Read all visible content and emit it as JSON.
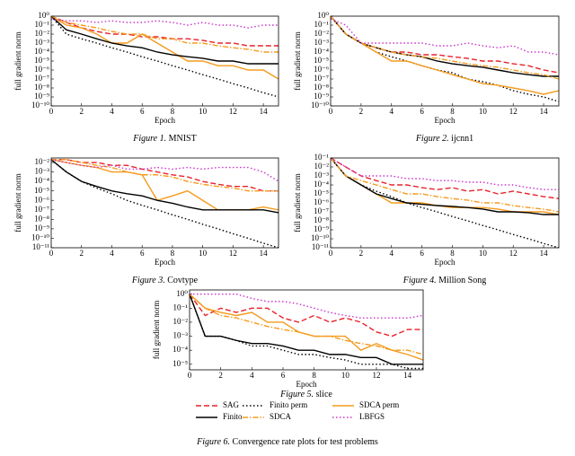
{
  "chart_data": [
    {
      "type": "line",
      "figure_label": "Figure 1.",
      "title": "MNIST",
      "xlabel": "Epoch",
      "ylabel": "full gradient norm",
      "log_y": true,
      "grid": false,
      "x": [
        0,
        1,
        2,
        3,
        4,
        5,
        6,
        7,
        8,
        9,
        10,
        11,
        12,
        13,
        14,
        15
      ],
      "xlim": [
        0,
        15
      ],
      "xticks": [
        0,
        2,
        4,
        6,
        8,
        10,
        12,
        14
      ],
      "ylim": [
        1e-10,
        1
      ],
      "yticks": [
        {
          "value": 1,
          "label": "10⁰"
        },
        {
          "value": 0.1,
          "label": "10⁻¹"
        },
        {
          "value": 0.01,
          "label": "10⁻²"
        },
        {
          "value": 0.001,
          "label": "10⁻³"
        },
        {
          "value": 0.0001,
          "label": "10⁻⁴"
        },
        {
          "value": 1e-05,
          "label": "10⁻⁵"
        },
        {
          "value": 1e-06,
          "label": "10⁻⁶"
        },
        {
          "value": 1e-07,
          "label": "10⁻⁷"
        },
        {
          "value": 1e-08,
          "label": "10⁻⁸"
        },
        {
          "value": 1e-09,
          "label": "10⁻⁹"
        },
        {
          "value": 1e-10,
          "label": "10⁻¹⁰"
        }
      ],
      "series": [
        {
          "color": "#e8222a",
          "linestyle": "dashed",
          "values": [
            1,
            0.2,
            0.05,
            0.02,
            0.01,
            0.01,
            0.005,
            0.005,
            0.003,
            0.003,
            0.002,
            0.001,
            0.001,
            0.0005,
            0.0005,
            0.0005
          ]
        },
        {
          "color": "#000000",
          "linestyle": "dotted",
          "values": [
            1,
            0.01,
            0.003,
            0.001,
            0.0003,
            0.0001,
            3e-05,
            1e-05,
            3e-06,
            1e-06,
            3e-07,
            1e-07,
            3e-08,
            1e-08,
            3e-09,
            1e-09
          ]
        },
        {
          "color": "#f59b1e",
          "linestyle": "solid",
          "values": [
            1,
            0.1,
            0.05,
            0.01,
            0.001,
            0.001,
            0.01,
            0.001,
            0.0001,
            1e-05,
            1e-05,
            3e-06,
            3e-06,
            1e-06,
            1e-06,
            1e-07
          ]
        },
        {
          "color": "#000000",
          "linestyle": "solid",
          "values": [
            1,
            0.03,
            0.01,
            0.003,
            0.001,
            0.0005,
            0.0003,
            0.0001,
            5e-05,
            3e-05,
            2e-05,
            1e-05,
            1e-05,
            5e-06,
            5e-06,
            5e-06
          ]
        },
        {
          "color": "#f59b1e",
          "linestyle": "dashdot",
          "values": [
            1,
            0.2,
            0.1,
            0.05,
            0.02,
            0.01,
            0.01,
            0.003,
            0.003,
            0.001,
            0.001,
            0.0005,
            0.0003,
            0.0002,
            0.0001,
            0.0001
          ]
        },
        {
          "color": "#cc33cc",
          "linestyle": "dotted",
          "values": [
            0.5,
            0.3,
            0.3,
            0.2,
            0.3,
            0.2,
            0.2,
            0.3,
            0.2,
            0.1,
            0.2,
            0.1,
            0.1,
            0.05,
            0.1,
            0.1
          ]
        }
      ]
    },
    {
      "type": "line",
      "figure_label": "Figure 2.",
      "title": "ijcnn1",
      "xlabel": "Epoch",
      "ylabel": "full gradient norm",
      "log_y": true,
      "grid": false,
      "x": [
        0,
        1,
        2,
        3,
        4,
        5,
        6,
        7,
        8,
        9,
        10,
        11,
        12,
        13,
        14,
        15
      ],
      "xlim": [
        0,
        15
      ],
      "xticks": [
        0,
        2,
        4,
        6,
        8,
        10,
        12,
        14
      ],
      "ylim": [
        1e-10,
        1
      ],
      "yticks": [
        {
          "value": 1,
          "label": "10⁰"
        },
        {
          "value": 0.1,
          "label": "10⁻¹"
        },
        {
          "value": 0.01,
          "label": "10⁻²"
        },
        {
          "value": 0.001,
          "label": "10⁻³"
        },
        {
          "value": 0.0001,
          "label": "10⁻⁴"
        },
        {
          "value": 1e-05,
          "label": "10⁻⁵"
        },
        {
          "value": 1e-06,
          "label": "10⁻⁶"
        },
        {
          "value": 1e-07,
          "label": "10⁻⁷"
        },
        {
          "value": 1e-08,
          "label": "10⁻⁸"
        },
        {
          "value": 1e-09,
          "label": "10⁻⁹"
        },
        {
          "value": 1e-10,
          "label": "10⁻¹⁰"
        }
      ],
      "series": [
        {
          "color": "#e8222a",
          "linestyle": "dashed",
          "values": [
            1,
            0.01,
            0.001,
            0.0003,
            0.0001,
            0.0001,
            5e-05,
            5e-05,
            3e-05,
            2e-05,
            1e-05,
            1e-05,
            5e-06,
            3e-06,
            1e-06,
            5e-07
          ]
        },
        {
          "color": "#000000",
          "linestyle": "dotted",
          "values": [
            1,
            0.01,
            0.001,
            0.0001,
            3e-05,
            1e-05,
            3e-06,
            1e-06,
            5e-07,
            1e-07,
            5e-08,
            2e-08,
            5e-09,
            2e-09,
            1e-09,
            3e-10
          ]
        },
        {
          "color": "#f59b1e",
          "linestyle": "solid",
          "values": [
            1,
            0.01,
            0.001,
            0.0001,
            1e-05,
            1e-05,
            3e-06,
            1e-06,
            3e-07,
            1e-07,
            3e-08,
            2e-08,
            1e-08,
            5e-09,
            2e-09,
            5e-09
          ]
        },
        {
          "color": "#000000",
          "linestyle": "solid",
          "values": [
            1,
            0.01,
            0.001,
            0.0003,
            0.0001,
            5e-05,
            3e-05,
            1e-05,
            5e-06,
            3e-06,
            2e-06,
            1e-06,
            5e-07,
            3e-07,
            2e-07,
            2e-07
          ]
        },
        {
          "color": "#f59b1e",
          "linestyle": "dashdot",
          "values": [
            1,
            0.01,
            0.001,
            0.0003,
            0.0001,
            5e-05,
            3e-05,
            2e-05,
            1e-05,
            5e-06,
            3e-06,
            2e-06,
            1e-06,
            5e-07,
            3e-07,
            1e-07
          ]
        },
        {
          "color": "#cc33cc",
          "linestyle": "dotted",
          "values": [
            0.5,
            0.1,
            0.001,
            0.001,
            0.001,
            0.001,
            0.001,
            0.0005,
            0.0005,
            0.001,
            0.0005,
            0.0003,
            0.0005,
            0.0001,
            0.0001,
            5e-05
          ]
        }
      ]
    },
    {
      "type": "line",
      "figure_label": "Figure 3.",
      "title": "Covtype",
      "xlabel": "Epoch",
      "ylabel": "full gradient norm",
      "log_y": true,
      "grid": false,
      "x": [
        0,
        1,
        2,
        3,
        4,
        5,
        6,
        7,
        8,
        9,
        10,
        11,
        12,
        13,
        14,
        15
      ],
      "xlim": [
        0,
        15
      ],
      "xticks": [
        0,
        2,
        4,
        6,
        8,
        10,
        12,
        14
      ],
      "ylim": [
        1e-11,
        0.03
      ],
      "yticks": [
        {
          "value": 0.01,
          "label": "10⁻²"
        },
        {
          "value": 0.001,
          "label": "10⁻³"
        },
        {
          "value": 0.0001,
          "label": "10⁻⁴"
        },
        {
          "value": 1e-05,
          "label": "10⁻⁵"
        },
        {
          "value": 1e-06,
          "label": "10⁻⁶"
        },
        {
          "value": 1e-07,
          "label": "10⁻⁷"
        },
        {
          "value": 1e-08,
          "label": "10⁻⁸"
        },
        {
          "value": 1e-09,
          "label": "10⁻⁹"
        },
        {
          "value": 1e-10,
          "label": "10⁻¹⁰"
        },
        {
          "value": 1e-11,
          "label": "10⁻¹¹"
        }
      ],
      "series": [
        {
          "color": "#e8222a",
          "linestyle": "dashed",
          "values": [
            0.02,
            0.02,
            0.01,
            0.01,
            0.005,
            0.005,
            0.002,
            0.001,
            0.0005,
            0.0003,
            0.0001,
            5e-05,
            3e-05,
            3e-05,
            1e-05,
            1e-05
          ]
        },
        {
          "color": "#000000",
          "linestyle": "dotted",
          "values": [
            0.02,
            0.001,
            0.0001,
            2e-05,
            5e-06,
            1e-06,
            3e-07,
            1e-07,
            3e-08,
            1e-08,
            3e-09,
            1e-09,
            3e-10,
            1e-10,
            3e-11,
            1e-11
          ]
        },
        {
          "color": "#f59b1e",
          "linestyle": "solid",
          "values": [
            0.02,
            0.01,
            0.005,
            0.003,
            0.001,
            0.001,
            0.0005,
            1e-06,
            3e-06,
            1e-05,
            1e-06,
            1e-07,
            1e-07,
            1e-07,
            2e-07,
            1e-07
          ]
        },
        {
          "color": "#000000",
          "linestyle": "solid",
          "values": [
            0.02,
            0.001,
            0.0001,
            3e-05,
            1e-05,
            5e-06,
            3e-06,
            1e-06,
            5e-07,
            2e-07,
            1e-07,
            1e-07,
            1e-07,
            1e-07,
            1e-07,
            5e-08
          ]
        },
        {
          "color": "#f59b1e",
          "linestyle": "dashdot",
          "values": [
            0.02,
            0.02,
            0.01,
            0.005,
            0.003,
            0.001,
            0.0005,
            0.0005,
            0.0003,
            0.0001,
            5e-05,
            3e-05,
            2e-05,
            1e-05,
            1e-05,
            1e-05
          ]
        },
        {
          "color": "#cc33cc",
          "linestyle": "dotted",
          "values": [
            0.02,
            0.01,
            0.005,
            0.003,
            0.005,
            0.002,
            0.002,
            0.003,
            0.002,
            0.003,
            0.002,
            0.003,
            0.003,
            0.003,
            0.001,
            0.0001
          ]
        }
      ]
    },
    {
      "type": "line",
      "figure_label": "Figure 4.",
      "title": "Million Song",
      "xlabel": "Epoch",
      "ylabel": "full gradient norm",
      "log_y": true,
      "grid": false,
      "x": [
        0,
        1,
        2,
        3,
        4,
        5,
        6,
        7,
        8,
        9,
        10,
        11,
        12,
        13,
        14,
        15
      ],
      "xlim": [
        0,
        15
      ],
      "xticks": [
        0,
        2,
        4,
        6,
        8,
        10,
        12,
        14
      ],
      "ylim": [
        1e-11,
        0.1
      ],
      "yticks": [
        {
          "value": 0.1,
          "label": "10⁻¹"
        },
        {
          "value": 0.01,
          "label": "10⁻²"
        },
        {
          "value": 0.001,
          "label": "10⁻³"
        },
        {
          "value": 0.0001,
          "label": "10⁻⁴"
        },
        {
          "value": 1e-05,
          "label": "10⁻⁵"
        },
        {
          "value": 1e-06,
          "label": "10⁻⁶"
        },
        {
          "value": 1e-07,
          "label": "10⁻⁷"
        },
        {
          "value": 1e-08,
          "label": "10⁻⁸"
        },
        {
          "value": 1e-09,
          "label": "10⁻⁹"
        },
        {
          "value": 1e-10,
          "label": "10⁻¹⁰"
        },
        {
          "value": 1e-11,
          "label": "10⁻¹¹"
        }
      ],
      "series": [
        {
          "color": "#e8222a",
          "linestyle": "dashed",
          "values": [
            0.1,
            0.01,
            0.001,
            0.0003,
            0.0001,
            0.0001,
            5e-05,
            3e-05,
            5e-05,
            2e-05,
            3e-05,
            1e-05,
            2e-05,
            1e-05,
            5e-06,
            3e-06
          ]
        },
        {
          "color": "#000000",
          "linestyle": "dotted",
          "values": [
            0.1,
            0.001,
            0.0001,
            2e-05,
            5e-06,
            1e-06,
            3e-07,
            1e-07,
            3e-08,
            1e-08,
            3e-09,
            1e-09,
            3e-10,
            1e-10,
            3e-11,
            1e-11
          ]
        },
        {
          "color": "#f59b1e",
          "linestyle": "solid",
          "values": [
            0.1,
            0.001,
            0.0001,
            1e-05,
            1e-06,
            1e-06,
            1e-06,
            5e-07,
            3e-07,
            3e-07,
            3e-07,
            2e-07,
            1e-07,
            1e-07,
            1e-07,
            5e-08
          ]
        },
        {
          "color": "#000000",
          "linestyle": "solid",
          "values": [
            0.1,
            0.001,
            0.0001,
            1e-05,
            3e-06,
            1e-06,
            7e-07,
            5e-07,
            4e-07,
            3e-07,
            2e-07,
            1e-07,
            1e-07,
            8e-08,
            5e-08,
            5e-08
          ]
        },
        {
          "color": "#f59b1e",
          "linestyle": "dashdot",
          "values": [
            0.1,
            0.001,
            0.0003,
            0.0001,
            3e-05,
            1e-05,
            1e-05,
            5e-06,
            3e-06,
            2e-06,
            1e-06,
            1e-06,
            5e-07,
            3e-07,
            2e-07,
            1e-07
          ]
        },
        {
          "color": "#cc33cc",
          "linestyle": "dotted",
          "values": [
            0.1,
            0.01,
            0.001,
            0.001,
            0.001,
            0.0005,
            0.0005,
            0.0003,
            0.0003,
            0.0002,
            0.0002,
            0.0001,
            0.0001,
            5e-05,
            3e-05,
            3e-05
          ]
        }
      ]
    },
    {
      "type": "line",
      "figure_label": "Figure 5.",
      "title": "slice",
      "xlabel": "Epoch",
      "ylabel": "full gradient norm",
      "log_y": true,
      "grid": false,
      "x": [
        0,
        1,
        2,
        3,
        4,
        5,
        6,
        7,
        8,
        9,
        10,
        11,
        12,
        13,
        14,
        15
      ],
      "xlim": [
        0,
        15
      ],
      "xticks": [
        0,
        2,
        4,
        6,
        8,
        10,
        12,
        14
      ],
      "ylim": [
        4e-06,
        2
      ],
      "yticks": [
        {
          "value": 1,
          "label": "10⁰"
        },
        {
          "value": 0.1,
          "label": "10⁻¹"
        },
        {
          "value": 0.01,
          "label": "10⁻²"
        },
        {
          "value": 0.001,
          "label": "10⁻³"
        },
        {
          "value": 0.0001,
          "label": "10⁻⁴"
        },
        {
          "value": 1e-05,
          "label": "10⁻⁵"
        }
      ],
      "series": [
        {
          "name": "SAG",
          "color": "#e8222a",
          "linestyle": "dashed",
          "values": [
            1,
            0.03,
            0.1,
            0.05,
            0.1,
            0.1,
            0.02,
            0.01,
            0.03,
            0.01,
            0.02,
            0.01,
            0.002,
            0.001,
            0.003,
            0.003
          ]
        },
        {
          "name": "Finito perm",
          "color": "#000000",
          "linestyle": "dotted",
          "values": [
            1,
            0.001,
            0.001,
            0.0005,
            0.0002,
            0.0002,
            0.0001,
            5e-05,
            5e-05,
            3e-05,
            2e-05,
            1e-05,
            1e-05,
            1e-05,
            5e-06,
            5e-06
          ]
        },
        {
          "name": "SDCA perm",
          "color": "#f59b1e",
          "linestyle": "solid",
          "values": [
            1,
            0.1,
            0.05,
            0.03,
            0.05,
            0.01,
            0.01,
            0.002,
            0.001,
            0.001,
            0.001,
            0.0001,
            0.0003,
            0.0001,
            5e-05,
            2e-05
          ]
        },
        {
          "name": "Finito",
          "color": "#000000",
          "linestyle": "solid",
          "values": [
            1,
            0.001,
            0.001,
            0.0005,
            0.0003,
            0.0003,
            0.0002,
            0.0001,
            0.0001,
            5e-05,
            5e-05,
            3e-05,
            3e-05,
            1e-05,
            1e-05,
            1e-05
          ]
        },
        {
          "name": "SDCA",
          "color": "#f59b1e",
          "linestyle": "dashdot",
          "values": [
            1,
            0.1,
            0.03,
            0.02,
            0.01,
            0.005,
            0.003,
            0.002,
            0.001,
            0.001,
            0.0005,
            0.0003,
            0.0002,
            0.0001,
            0.0001,
            5e-05
          ]
        },
        {
          "name": "LBFGS",
          "color": "#cc33cc",
          "linestyle": "dotted",
          "values": [
            1,
            1,
            1,
            1,
            0.5,
            0.3,
            0.3,
            0.2,
            0.1,
            0.05,
            0.03,
            0.02,
            0.02,
            0.02,
            0.02,
            0.03
          ]
        }
      ]
    }
  ],
  "figure_caption": {
    "label": "Figure 6.",
    "text": "Convergence rate plots for test problems"
  }
}
